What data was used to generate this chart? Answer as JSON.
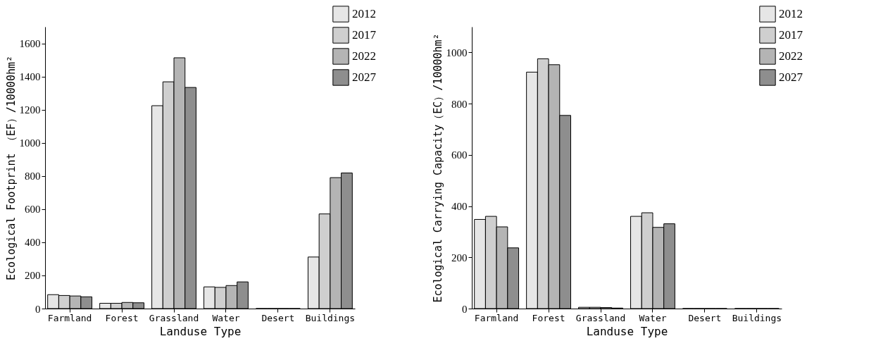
{
  "chart_data": [
    {
      "type": "bar",
      "xlabel": "Landuse Type",
      "ylabel": "Ecological Footprint （EF）/10000hm²",
      "categories": [
        "Farmland",
        "Forest",
        "Grassland",
        "Water",
        "Desert",
        "Buildings"
      ],
      "series": [
        {
          "name": "2012",
          "color": "#e6e6e6",
          "values": [
            84,
            32,
            1224,
            131,
            0,
            311
          ]
        },
        {
          "name": "2017",
          "color": "#cfcfcf",
          "values": [
            79,
            32,
            1368,
            128,
            0,
            571
          ]
        },
        {
          "name": "2022",
          "color": "#b4b4b4",
          "values": [
            76,
            37,
            1513,
            139,
            0,
            790
          ]
        },
        {
          "name": "2027",
          "color": "#8e8e8e",
          "values": [
            71,
            35,
            1334,
            161,
            0,
            818
          ]
        }
      ],
      "ylim": [
        0,
        1700
      ],
      "yticks": [
        0,
        200,
        400,
        600,
        800,
        1000,
        1200,
        1400,
        1600
      ],
      "grid": false,
      "legend": "top right"
    },
    {
      "type": "bar",
      "xlabel": "Landuse Type",
      "ylabel": "Ecological Carrying Capacity（EC）/10000hm²",
      "categories": [
        "Farmland",
        "Forest",
        "Grassland",
        "Water",
        "Desert",
        "Buildings"
      ],
      "series": [
        {
          "name": "2012",
          "color": "#e6e6e6",
          "values": [
            348,
            923,
            5,
            360,
            0,
            0
          ]
        },
        {
          "name": "2017",
          "color": "#cfcfcf",
          "values": [
            360,
            975,
            5,
            374,
            0,
            0
          ]
        },
        {
          "name": "2022",
          "color": "#b4b4b4",
          "values": [
            319,
            952,
            4,
            317,
            0,
            0
          ]
        },
        {
          "name": "2027",
          "color": "#8e8e8e",
          "values": [
            237,
            754,
            2,
            331,
            0,
            0
          ]
        }
      ],
      "ylim": [
        0,
        1100
      ],
      "yticks": [
        0,
        200,
        400,
        600,
        800,
        1000
      ],
      "grid": false,
      "legend": "top right"
    }
  ]
}
